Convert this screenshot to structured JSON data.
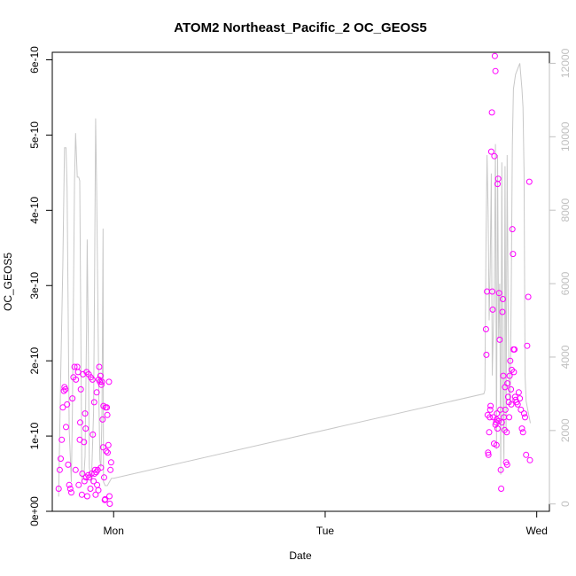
{
  "chart_data": {
    "type": "scatter",
    "title": "ATOM2 Northeast_Pacific_2 OC_GEOS5",
    "xlabel": "Date",
    "ylabel": "OC_GEOS5",
    "x_unit": "days since Mon 00:00",
    "xlim": [
      -0.29,
      2.06
    ],
    "x_ticks": [
      {
        "value": 0,
        "label": "Mon"
      },
      {
        "value": 1,
        "label": "Tue"
      },
      {
        "value": 2,
        "label": "Wed"
      }
    ],
    "ylim": [
      0,
      6.1e-10
    ],
    "y_ticks": [
      {
        "value": 0,
        "label": "0e+00"
      },
      {
        "value": 1e-10,
        "label": "1e-10"
      },
      {
        "value": 2e-10,
        "label": "2e-10"
      },
      {
        "value": 3e-10,
        "label": "3e-10"
      },
      {
        "value": 4e-10,
        "label": "4e-10"
      },
      {
        "value": 5e-10,
        "label": "5e-10"
      },
      {
        "value": 6e-10,
        "label": "6e-10"
      }
    ],
    "y2lim": [
      -200,
      12300
    ],
    "y2_ticks": [
      {
        "value": 0,
        "label": "0"
      },
      {
        "value": 2000,
        "label": "2000"
      },
      {
        "value": 4000,
        "label": "4000"
      },
      {
        "value": 6000,
        "label": "6000"
      },
      {
        "value": 8000,
        "label": "8000"
      },
      {
        "value": 10000,
        "label": "10000"
      },
      {
        "value": 12000,
        "label": "12000"
      }
    ],
    "grid": false,
    "colors": {
      "points": "#ff00ff",
      "altitude_line": "#c8c8c8",
      "axes": "#000000",
      "right_axis": "#c0c0c0"
    },
    "series": [
      {
        "type": "scatter",
        "color": "#ff00ff",
        "points": [
          [
            -0.26,
            3e-11
          ],
          [
            -0.255,
            5.5e-11
          ],
          [
            -0.25,
            7e-11
          ],
          [
            -0.245,
            9.5e-11
          ],
          [
            -0.24,
            1.38e-10
          ],
          [
            -0.235,
            1.6e-10
          ],
          [
            -0.232,
            1.65e-10
          ],
          [
            -0.228,
            1.62e-10
          ],
          [
            -0.225,
            1.12e-10
          ],
          [
            -0.22,
            1.42e-10
          ],
          [
            -0.215,
            6.2e-11
          ],
          [
            -0.21,
            3.5e-11
          ],
          [
            -0.205,
            3e-11
          ],
          [
            -0.2,
            2.5e-11
          ],
          [
            -0.195,
            1.5e-10
          ],
          [
            -0.19,
            1.78e-10
          ],
          [
            -0.185,
            1.92e-10
          ],
          [
            -0.18,
            5.5e-11
          ],
          [
            -0.178,
            1.75e-10
          ],
          [
            -0.172,
            1.92e-10
          ],
          [
            -0.168,
            1.85e-10
          ],
          [
            -0.165,
            3.5e-11
          ],
          [
            -0.16,
            9.5e-11
          ],
          [
            -0.158,
            1.18e-10
          ],
          [
            -0.155,
            1.62e-10
          ],
          [
            -0.15,
            2.2e-11
          ],
          [
            -0.148,
            5e-11
          ],
          [
            -0.145,
            1.82e-10
          ],
          [
            -0.14,
            9.2e-11
          ],
          [
            -0.138,
            4e-11
          ],
          [
            -0.135,
            1.3e-10
          ],
          [
            -0.132,
            1.1e-10
          ],
          [
            -0.13,
            4.5e-11
          ],
          [
            -0.128,
            1.85e-10
          ],
          [
            -0.125,
            2e-11
          ],
          [
            -0.12,
            4.8e-11
          ],
          [
            -0.118,
            1.82e-10
          ],
          [
            -0.115,
            4.5e-11
          ],
          [
            -0.11,
            3e-11
          ],
          [
            -0.108,
            1.78e-10
          ],
          [
            -0.105,
            5e-11
          ],
          [
            -0.1,
            1.75e-10
          ],
          [
            -0.098,
            1.02e-10
          ],
          [
            -0.095,
            4e-11
          ],
          [
            -0.092,
            1.45e-10
          ],
          [
            -0.09,
            5e-11
          ],
          [
            -0.088,
            5.5e-11
          ],
          [
            -0.085,
            2.2e-11
          ],
          [
            -0.082,
            5.2e-11
          ],
          [
            -0.08,
            1.58e-10
          ],
          [
            -0.078,
            3.5e-11
          ],
          [
            -0.075,
            5.5e-11
          ],
          [
            -0.072,
            2.8e-11
          ],
          [
            -0.07,
            1.75e-10
          ],
          [
            -0.068,
            1.92e-10
          ],
          [
            -0.065,
            1.72e-10
          ],
          [
            -0.062,
            1.8e-10
          ],
          [
            -0.06,
            5.8e-11
          ],
          [
            -0.058,
            1.68e-10
          ],
          [
            -0.055,
            1.72e-10
          ],
          [
            -0.052,
            1.22e-10
          ],
          [
            -0.05,
            8.5e-11
          ],
          [
            -0.048,
            1.4e-10
          ],
          [
            -0.045,
            4.5e-11
          ],
          [
            -0.042,
            1.5e-11
          ],
          [
            -0.04,
            1.6e-11
          ],
          [
            -0.038,
            1.38e-10
          ],
          [
            -0.035,
            8e-11
          ],
          [
            -0.032,
            1.38e-10
          ],
          [
            -0.03,
            1.28e-10
          ],
          [
            -0.028,
            7.8e-11
          ],
          [
            -0.025,
            8.8e-11
          ],
          [
            -0.022,
            1.72e-10
          ],
          [
            -0.02,
            2e-11
          ],
          [
            -0.018,
            1e-11
          ],
          [
            -0.015,
            5.5e-11
          ],
          [
            -0.012,
            6.5e-11
          ],
          [
            1.76,
            2.42e-10
          ],
          [
            1.762,
            2.08e-10
          ],
          [
            1.765,
            2.92e-10
          ],
          [
            1.768,
            1.28e-10
          ],
          [
            1.77,
            7.8e-11
          ],
          [
            1.772,
            7.5e-11
          ],
          [
            1.775,
            1.05e-10
          ],
          [
            1.778,
            1.25e-10
          ],
          [
            1.78,
            1.35e-10
          ],
          [
            1.782,
            1.4e-10
          ],
          [
            1.785,
            4.78e-10
          ],
          [
            1.788,
            5.3e-10
          ],
          [
            1.79,
            2.92e-10
          ],
          [
            1.792,
            2.68e-10
          ],
          [
            1.795,
            1.25e-10
          ],
          [
            1.798,
            9e-11
          ],
          [
            1.8,
            4.72e-10
          ],
          [
            1.802,
            6.05e-10
          ],
          [
            1.805,
            5.85e-10
          ],
          [
            1.808,
            1.18e-10
          ],
          [
            1.81,
            8.8e-11
          ],
          [
            1.812,
            1.3e-10
          ],
          [
            1.815,
            4.35e-10
          ],
          [
            1.818,
            4.42e-10
          ],
          [
            1.82,
            1.2e-10
          ],
          [
            1.822,
            2.9e-10
          ],
          [
            1.825,
            2.28e-10
          ],
          [
            1.828,
            1.35e-10
          ],
          [
            1.83,
            5.5e-11
          ],
          [
            1.832,
            3e-11
          ],
          [
            1.835,
            1.18e-10
          ],
          [
            1.838,
            2.65e-10
          ],
          [
            1.84,
            2.82e-10
          ],
          [
            1.842,
            1.8e-10
          ],
          [
            1.845,
            1.25e-10
          ],
          [
            1.848,
            1.08e-10
          ],
          [
            1.85,
            1.65e-10
          ],
          [
            1.852,
            1.35e-10
          ],
          [
            1.855,
            6.5e-11
          ],
          [
            1.858,
            1.05e-10
          ],
          [
            1.86,
            6.2e-11
          ],
          [
            1.862,
            1.7e-10
          ],
          [
            1.865,
            1.52e-10
          ],
          [
            1.868,
            1.45e-10
          ],
          [
            1.87,
            1.25e-10
          ],
          [
            1.872,
            1.8e-10
          ],
          [
            1.875,
            2e-10
          ],
          [
            1.878,
            1.62e-10
          ],
          [
            1.88,
            1.42e-10
          ],
          [
            1.882,
            1.88e-10
          ],
          [
            1.885,
            3.75e-10
          ],
          [
            1.888,
            3.42e-10
          ],
          [
            1.89,
            2.15e-10
          ],
          [
            1.892,
            1.85e-10
          ],
          [
            1.895,
            2.15e-10
          ],
          [
            1.898,
            1.52e-10
          ],
          [
            1.9,
            1.48e-10
          ],
          [
            1.905,
            1.45e-10
          ],
          [
            1.91,
            1.42e-10
          ],
          [
            1.915,
            1.58e-10
          ],
          [
            1.92,
            1.5e-10
          ],
          [
            1.925,
            1.35e-10
          ],
          [
            1.93,
            1.1e-10
          ],
          [
            1.935,
            1.05e-10
          ],
          [
            1.94,
            1.3e-10
          ],
          [
            1.945,
            1.25e-10
          ],
          [
            1.95,
            7.5e-11
          ],
          [
            1.955,
            2.2e-10
          ],
          [
            1.96,
            2.85e-10
          ],
          [
            1.965,
            4.38e-10
          ],
          [
            1.968,
            6.8e-11
          ],
          [
            1.805,
            1.15e-10
          ],
          [
            1.81,
            1.22e-10
          ],
          [
            1.815,
            1.1e-10
          ]
        ]
      },
      {
        "type": "line",
        "axis": "right",
        "color": "#c8c8c8",
        "points": [
          [
            -0.26,
            200
          ],
          [
            -0.25,
            3500
          ],
          [
            -0.24,
            6500
          ],
          [
            -0.232,
            9700
          ],
          [
            -0.225,
            9700
          ],
          [
            -0.22,
            8600
          ],
          [
            -0.21,
            2000
          ],
          [
            -0.2,
            600
          ],
          [
            -0.195,
            2500
          ],
          [
            -0.185,
            8800
          ],
          [
            -0.18,
            10100
          ],
          [
            -0.172,
            8900
          ],
          [
            -0.165,
            8900
          ],
          [
            -0.16,
            8800
          ],
          [
            -0.15,
            700
          ],
          [
            -0.14,
            800
          ],
          [
            -0.135,
            1300
          ],
          [
            -0.128,
            4800
          ],
          [
            -0.125,
            7200
          ],
          [
            -0.12,
            4500
          ],
          [
            -0.115,
            1000
          ],
          [
            -0.105,
            600
          ],
          [
            -0.095,
            2500
          ],
          [
            -0.09,
            6000
          ],
          [
            -0.085,
            10500
          ],
          [
            -0.08,
            8500
          ],
          [
            -0.07,
            3000
          ],
          [
            -0.065,
            1200
          ],
          [
            -0.06,
            1000
          ],
          [
            -0.055,
            2500
          ],
          [
            -0.05,
            7500
          ],
          [
            -0.048,
            600
          ],
          [
            -0.04,
            500
          ],
          [
            -0.03,
            500
          ],
          [
            -0.01,
            700
          ],
          [
            0.0,
            700
          ],
          [
            1.75,
            3000
          ],
          [
            1.755,
            3100
          ],
          [
            1.76,
            7000
          ],
          [
            1.765,
            9500
          ],
          [
            1.77,
            8000
          ],
          [
            1.775,
            5000
          ],
          [
            1.78,
            6500
          ],
          [
            1.785,
            9000
          ],
          [
            1.79,
            3500
          ],
          [
            1.8,
            6000
          ],
          [
            1.805,
            9800
          ],
          [
            1.81,
            1500
          ],
          [
            1.815,
            9500
          ],
          [
            1.82,
            4500
          ],
          [
            1.825,
            6000
          ],
          [
            1.83,
            800
          ],
          [
            1.835,
            9300
          ],
          [
            1.84,
            3000
          ],
          [
            1.845,
            1200
          ],
          [
            1.85,
            9200
          ],
          [
            1.855,
            2000
          ],
          [
            1.86,
            9500
          ],
          [
            1.865,
            5500
          ],
          [
            1.87,
            3000
          ],
          [
            1.875,
            2700
          ],
          [
            1.88,
            6000
          ],
          [
            1.885,
            9800
          ],
          [
            1.89,
            11300
          ],
          [
            1.9,
            11700
          ],
          [
            1.92,
            12000
          ],
          [
            1.93,
            11300
          ],
          [
            1.935,
            10800
          ],
          [
            1.94,
            9000
          ],
          [
            1.945,
            3500
          ],
          [
            1.95,
            2800
          ],
          [
            1.96,
            2500
          ],
          [
            1.97,
            2200
          ]
        ]
      }
    ]
  }
}
